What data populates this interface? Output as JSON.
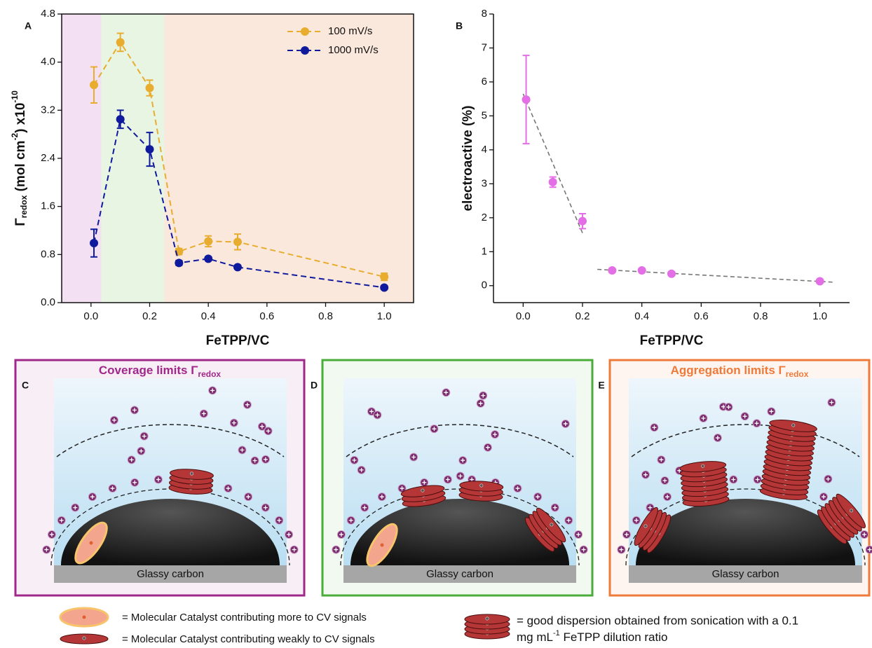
{
  "chart_data": [
    {
      "type": "line",
      "panel_label": "A",
      "x": [
        0.01,
        0.1,
        0.2,
        0.3,
        0.4,
        0.5,
        1.0
      ],
      "series": [
        {
          "name": "100 mV/s",
          "color": "#e8ad2e",
          "values": [
            3.62,
            4.33,
            3.57,
            0.85,
            1.02,
            1.01,
            0.43
          ],
          "errors": [
            0.3,
            0.15,
            0.13,
            0.05,
            0.09,
            0.13,
            0.06
          ]
        },
        {
          "name": "1000 mV/s",
          "color": "#0f1a9c",
          "values": [
            0.99,
            3.05,
            2.55,
            0.66,
            0.73,
            0.59,
            0.25
          ],
          "errors": [
            0.23,
            0.15,
            0.28,
            0.04,
            0.03,
            0.03,
            0.02
          ]
        }
      ],
      "x_label": "FeTPP/VC",
      "y_label": [
        "Γ",
        "redox",
        " (mol cm",
        "-2",
        ") x10",
        "-10"
      ],
      "xlim": [
        -0.1,
        1.1
      ],
      "xticks": [
        {
          "value": 0,
          "label": "0.0"
        },
        0.2,
        0.4,
        0.6,
        0.8,
        {
          "value": 1,
          "label": "1.0"
        }
      ],
      "ylim": [
        0,
        4.8
      ],
      "yticks": [
        {
          "value": 0,
          "label": "0.0"
        },
        0.8,
        1.6,
        2.4,
        3.2,
        {
          "value": 4,
          "label": "4.0"
        },
        4.8
      ],
      "line_style": "dashed",
      "legend": "upper right",
      "box": true,
      "regions": [
        {
          "from": -0.1,
          "to": 0.035,
          "color": "#f3e0f3"
        },
        {
          "from": 0.035,
          "to": 0.25,
          "color": "#e8f5e3"
        },
        {
          "from": 0.25,
          "to": 1.1,
          "color": "#fbe8dd"
        }
      ]
    },
    {
      "type": "scatter",
      "panel_label": "B",
      "x": [
        0.01,
        0.1,
        0.2,
        0.3,
        0.4,
        0.5,
        1.0
      ],
      "series": [
        {
          "color": "#e36ee6",
          "values": [
            5.48,
            3.05,
            1.9,
            0.45,
            0.45,
            0.35,
            0.13
          ],
          "errors": [
            1.3,
            0.15,
            0.22,
            0.05,
            0.04,
            0.04,
            0.04
          ]
        }
      ],
      "x_label": "FeTPP/VC",
      "y_label": "electroactive (%)",
      "xlim": [
        -0.1,
        1.1
      ],
      "xticks": [
        {
          "value": 0,
          "label": "0.0"
        },
        0.2,
        0.4,
        0.6,
        0.8,
        {
          "value": 1,
          "label": "1.0"
        }
      ],
      "ylim": [
        -0.5,
        8
      ],
      "yticks": [
        0,
        1,
        2,
        3,
        4,
        5,
        6,
        7,
        8
      ],
      "trendlines": [
        {
          "x": [
            0,
            0.2
          ],
          "y": [
            5.65,
            1.55
          ]
        },
        {
          "x": [
            0.25,
            1.05
          ],
          "y": [
            0.48,
            0.1
          ]
        }
      ],
      "box": false
    }
  ],
  "panels": [
    {
      "label": "C",
      "title": [
        "Coverage limits Γ",
        "redox"
      ],
      "substrate": "Glassy carbon",
      "color": "#a0288a"
    },
    {
      "label": "D",
      "substrate": "Glassy carbon",
      "color": "#4aad3a"
    },
    {
      "label": "E",
      "title": [
        "Aggregation limits Γ",
        "redox"
      ],
      "substrate": "Glassy carbon",
      "color": "#ee7a3a"
    }
  ],
  "legend": {
    "items": [
      "= Molecular Catalyst contributing more to CV signals",
      "= Molecular Catalyst contributing weakly to CV signals"
    ],
    "dispersion": [
      "= good dispersion obtained from sonication with a 0.1",
      "mg mL",
      "-1",
      " FeTPP dilution ratio"
    ]
  }
}
